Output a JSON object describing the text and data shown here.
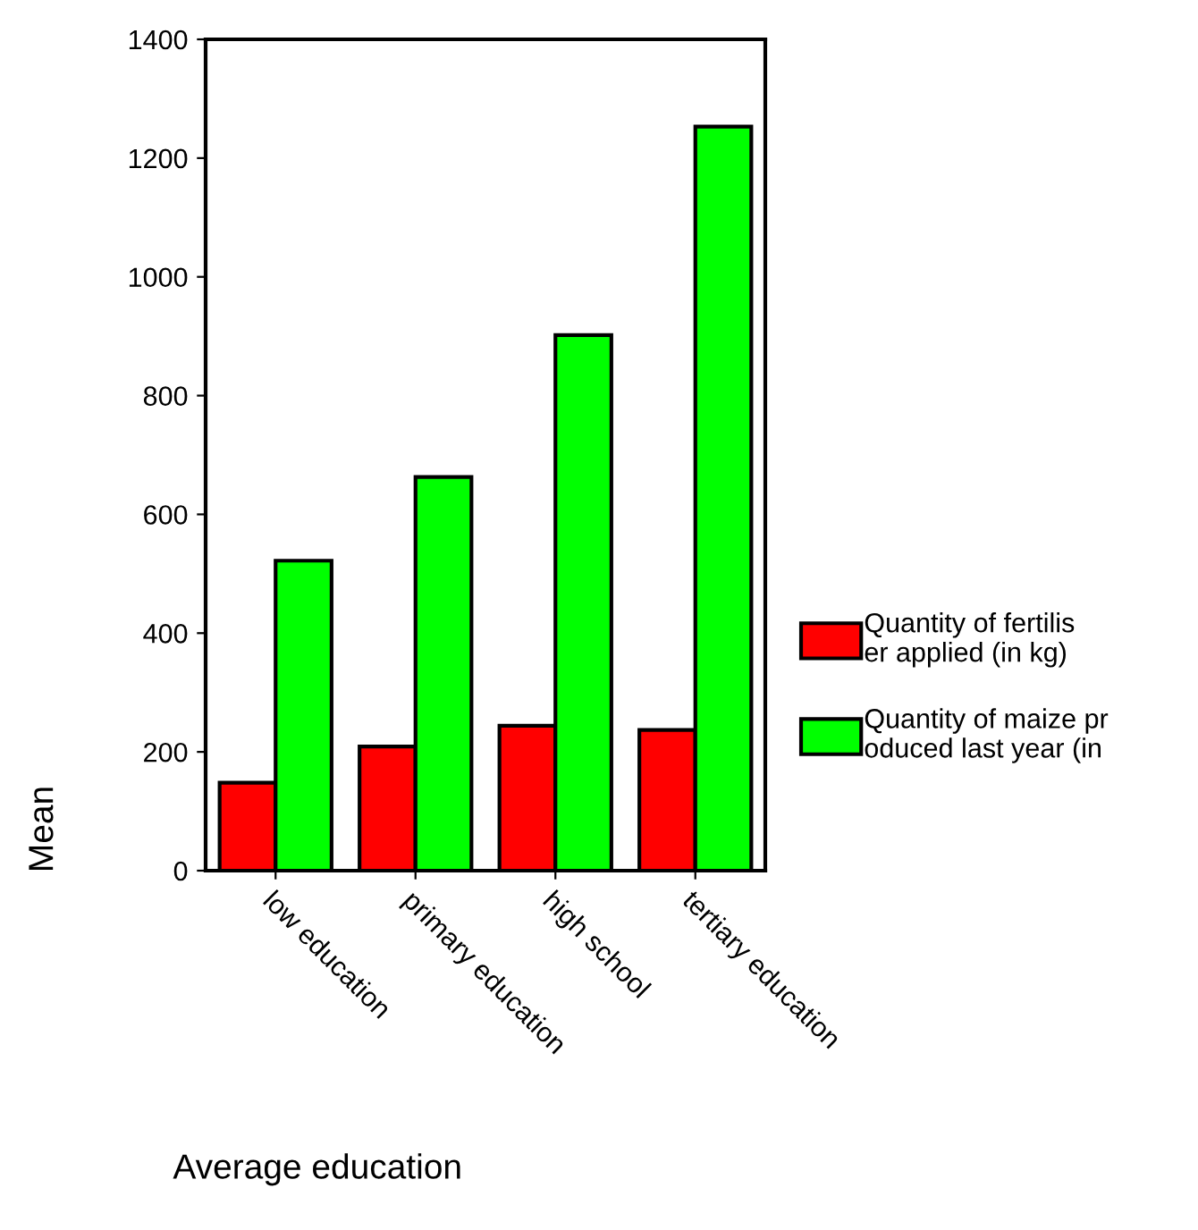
{
  "chart_data": {
    "type": "bar",
    "xlabel": "Average education",
    "ylabel": "Mean",
    "categories": [
      "low education",
      "primary education",
      "high school",
      "tertiary education"
    ],
    "series": [
      {
        "name": "Quantity of fertilis\ner applied (in kg)",
        "color": "#ff0000",
        "values": [
          148,
          209,
          244,
          237
        ]
      },
      {
        "name": "Quantity of maize pr\noduced last year (in",
        "color": "#00ff00",
        "values": [
          522,
          663,
          902,
          1253
        ]
      }
    ],
    "ylim": [
      0,
      1400
    ],
    "yticks": [
      0,
      200,
      400,
      600,
      800,
      1000,
      1200,
      1400
    ],
    "grid": false,
    "legend": "right"
  }
}
